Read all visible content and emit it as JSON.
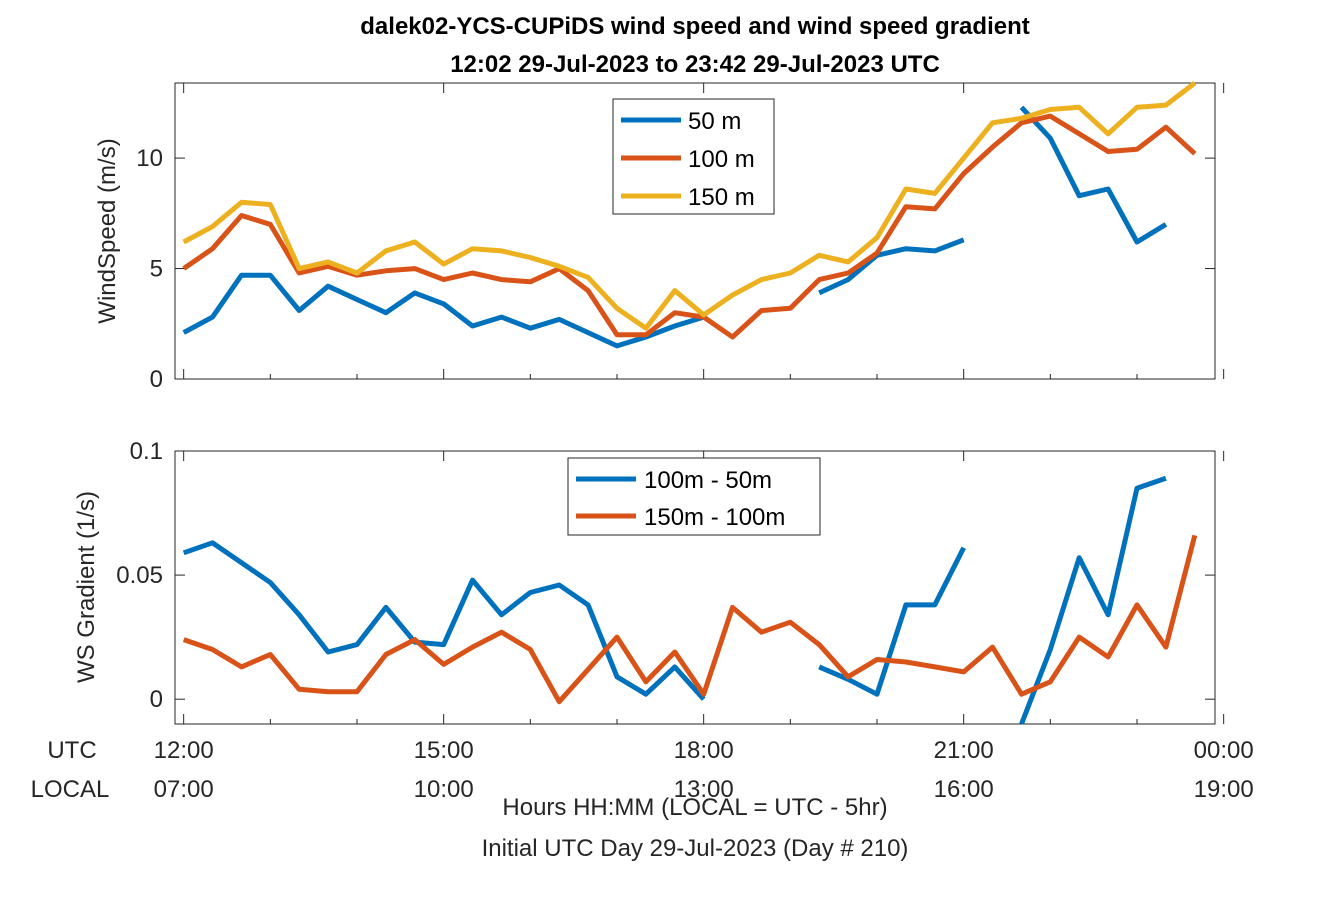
{
  "title": {
    "line1": "dalek02-YCS-CUPiDS  wind speed and wind speed gradient",
    "line2": "12:02 29-Jul-2023 to 23:42 29-Jul-2023  UTC"
  },
  "xaxis": {
    "utc_label": "UTC",
    "local_label": "LOCAL",
    "utc_ticks": [
      "12:00",
      "15:00",
      "18:00",
      "21:00",
      "00:00"
    ],
    "local_ticks": [
      "07:00",
      "10:00",
      "13:00",
      "16:00",
      "19:00"
    ],
    "tick_hours": [
      12,
      15,
      18,
      21,
      24
    ],
    "xlabel_line1": "Hours HH:MM  (LOCAL = UTC - 5hr)",
    "xlabel_line2": "Initial UTC Day 29-Jul-2023 (Day # 210)",
    "xlim": [
      11.9,
      23.9
    ]
  },
  "chart_data": [
    {
      "type": "line",
      "ylabel": "WindSpeed (m/s)",
      "ylim": [
        0,
        13.4
      ],
      "yticks": [
        0,
        5,
        10
      ],
      "ytick_labels": [
        "0",
        "5",
        "10"
      ],
      "legend": "top-center",
      "x": [
        12.0,
        12.333,
        12.667,
        13.0,
        13.333,
        13.667,
        14.0,
        14.333,
        14.667,
        15.0,
        15.333,
        15.667,
        16.0,
        16.333,
        16.667,
        17.0,
        17.333,
        17.667,
        18.0,
        18.333,
        18.667,
        19.0,
        19.333,
        19.667,
        20.0,
        20.333,
        20.667,
        21.0,
        21.333,
        21.667,
        22.0,
        22.333,
        22.667,
        23.0,
        23.333,
        23.667
      ],
      "series": [
        {
          "name": "50 m",
          "color": "#0072BD",
          "values": [
            2.1,
            2.8,
            4.7,
            4.7,
            3.1,
            4.2,
            3.6,
            3.0,
            3.9,
            3.4,
            2.4,
            2.8,
            2.3,
            2.7,
            2.1,
            1.5,
            1.9,
            2.4,
            2.8,
            null,
            null,
            null,
            3.9,
            4.5,
            5.6,
            5.9,
            5.8,
            6.3,
            null,
            12.3,
            10.9,
            8.3,
            8.6,
            6.2,
            7.0,
            null
          ]
        },
        {
          "name": "100 m",
          "color": "#D95319",
          "values": [
            5.0,
            5.9,
            7.4,
            7.0,
            4.8,
            5.1,
            4.7,
            4.9,
            5.0,
            4.5,
            4.8,
            4.5,
            4.4,
            5.0,
            4.0,
            2.0,
            2.0,
            3.0,
            2.8,
            1.9,
            3.1,
            3.2,
            4.5,
            4.8,
            5.7,
            7.8,
            7.7,
            9.3,
            10.5,
            11.6,
            11.9,
            11.1,
            10.3,
            10.4,
            11.4,
            10.2
          ]
        },
        {
          "name": "150 m",
          "color": "#EDB120",
          "values": [
            6.2,
            6.9,
            8.0,
            7.9,
            5.0,
            5.3,
            4.8,
            5.8,
            6.2,
            5.2,
            5.9,
            5.8,
            5.5,
            5.1,
            4.6,
            3.2,
            2.3,
            4.0,
            2.9,
            3.8,
            4.5,
            4.8,
            5.6,
            5.3,
            6.4,
            8.6,
            8.4,
            10.0,
            11.6,
            11.8,
            12.2,
            12.3,
            11.1,
            12.3,
            12.4,
            13.4
          ]
        }
      ]
    },
    {
      "type": "line",
      "ylabel": "WS Gradient (1/s)",
      "ylim": [
        -0.01,
        0.1
      ],
      "yticks": [
        0,
        0.05,
        0.1
      ],
      "ytick_labels": [
        "0",
        "0.05",
        "0.1"
      ],
      "legend": "top-center",
      "x": [
        12.0,
        12.333,
        12.667,
        13.0,
        13.333,
        13.667,
        14.0,
        14.333,
        14.667,
        15.0,
        15.333,
        15.667,
        16.0,
        16.333,
        16.667,
        17.0,
        17.333,
        17.667,
        18.0,
        18.333,
        18.667,
        19.0,
        19.333,
        19.667,
        20.0,
        20.333,
        20.667,
        21.0,
        21.333,
        21.667,
        22.0,
        22.333,
        22.667,
        23.0,
        23.333,
        23.667
      ],
      "series": [
        {
          "name": "100m - 50m",
          "color": "#0072BD",
          "values": [
            0.059,
            0.063,
            0.055,
            0.047,
            0.034,
            0.019,
            0.022,
            0.037,
            0.023,
            0.022,
            0.048,
            0.034,
            0.043,
            0.046,
            0.038,
            0.009,
            0.002,
            0.013,
            0.0,
            null,
            null,
            null,
            0.013,
            0.008,
            0.002,
            0.038,
            0.038,
            0.061,
            null,
            -0.01,
            0.02,
            0.057,
            0.034,
            0.085,
            0.089,
            null
          ]
        },
        {
          "name": "150m - 100m",
          "color": "#D95319",
          "values": [
            0.024,
            0.02,
            0.013,
            0.018,
            0.004,
            0.003,
            0.003,
            0.018,
            0.024,
            0.014,
            0.021,
            0.027,
            0.02,
            -0.001,
            0.012,
            0.025,
            0.007,
            0.019,
            0.002,
            0.037,
            0.027,
            0.031,
            0.022,
            0.009,
            0.016,
            0.015,
            0.013,
            0.011,
            0.021,
            0.002,
            0.007,
            0.025,
            0.017,
            0.038,
            0.021,
            0.066
          ]
        }
      ]
    }
  ]
}
